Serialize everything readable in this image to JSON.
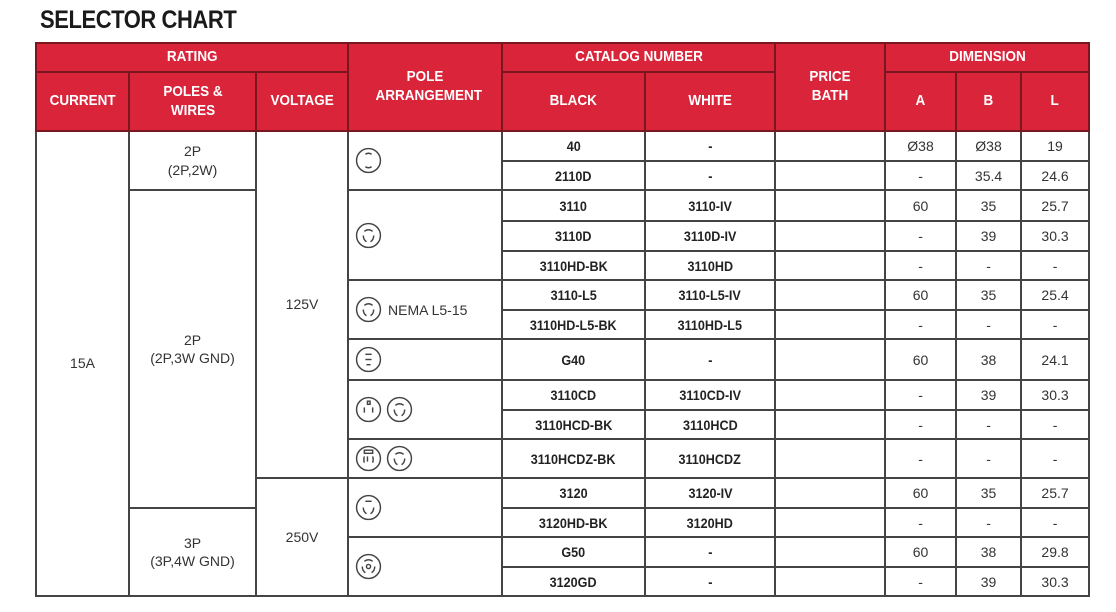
{
  "title": "SELECTOR CHART",
  "header": {
    "rating": "RATING",
    "current": "CURRENT",
    "poles_wires": "POLES & WIRES",
    "voltage": "VOLTAGE",
    "pole_arrangement": "POLE ARRANGEMENT",
    "catalog_number": "CATALOG NUMBER",
    "black": "BLACK",
    "white": "WHITE",
    "price_bath": "PRICE BATH",
    "dimension": "DIMENSION",
    "a": "A",
    "b": "B",
    "l": "L"
  },
  "colors": {
    "header_bg": "#d9243a",
    "header_text": "#ffffff"
  },
  "current": "15A",
  "poles_groups": [
    {
      "label": "2P",
      "sub": "(2P,2W)",
      "rows": 2
    },
    {
      "label": "2P",
      "sub": "(2P,3W GND)",
      "rows": 10
    },
    {
      "label": "3P",
      "sub": "(3P,4W GND)",
      "rows": 3
    }
  ],
  "voltage_groups": [
    {
      "label": "125V",
      "rows": 11
    },
    {
      "label": "250V",
      "rows": 4
    }
  ],
  "pole_groups": [
    {
      "icons": [
        "2-pole-receptacle-icon"
      ],
      "label": "",
      "rows": 2
    },
    {
      "icons": [
        "twist-lock-3-pole-icon"
      ],
      "label": "",
      "rows": 3
    },
    {
      "icons": [
        "twist-lock-3-pole-icon"
      ],
      "label": "NEMA L5-15",
      "rows": 2
    },
    {
      "icons": [
        "3-blade-receptacle-icon"
      ],
      "label": "",
      "rows": 1
    },
    {
      "icons": [
        "grounded-receptacle-icon",
        "twist-lock-3-pole-icon"
      ],
      "label": "",
      "rows": 2
    },
    {
      "icons": [
        "grounded-receptacle-z-icon",
        "twist-lock-3-pole-icon"
      ],
      "label": "",
      "rows": 1
    },
    {
      "icons": [
        "twist-lock-250v-icon"
      ],
      "label": "",
      "rows": 2
    },
    {
      "icons": [
        "twist-lock-4-wire-icon"
      ],
      "label": "",
      "rows": 2
    }
  ],
  "rows": [
    {
      "black": "40",
      "white": "-",
      "price": "",
      "a": "Ø38",
      "b": "Ø38",
      "l": "19"
    },
    {
      "black": "2110D",
      "white": "-",
      "price": "",
      "a": "-",
      "b": "35.4",
      "l": "24.6"
    },
    {
      "black": "3110",
      "white": "3110-IV",
      "price": "",
      "a": "60",
      "b": "35",
      "l": "25.7"
    },
    {
      "black": "3110D",
      "white": "3110D-IV",
      "price": "",
      "a": "-",
      "b": "39",
      "l": "30.3"
    },
    {
      "black": "3110HD-BK",
      "white": "3110HD",
      "price": "",
      "a": "-",
      "b": "-",
      "l": "-"
    },
    {
      "black": "3110-L5",
      "white": "3110-L5-IV",
      "price": "",
      "a": "60",
      "b": "35",
      "l": "25.4"
    },
    {
      "black": "3110HD-L5-BK",
      "white": "3110HD-L5",
      "price": "",
      "a": "-",
      "b": "-",
      "l": "-"
    },
    {
      "black": "G40",
      "white": "-",
      "price": "",
      "a": "60",
      "b": "38",
      "l": "24.1"
    },
    {
      "black": "3110CD",
      "white": "3110CD-IV",
      "price": "",
      "a": "-",
      "b": "39",
      "l": "30.3"
    },
    {
      "black": "3110HCD-BK",
      "white": "3110HCD",
      "price": "",
      "a": "-",
      "b": "-",
      "l": "-"
    },
    {
      "black": "3110HCDZ-BK",
      "white": "3110HCDZ",
      "price": "",
      "a": "-",
      "b": "-",
      "l": "-"
    },
    {
      "black": "3120",
      "white": "3120-IV",
      "price": "",
      "a": "60",
      "b": "35",
      "l": "25.7"
    },
    {
      "black": "3120HD-BK",
      "white": "3120HD",
      "price": "",
      "a": "-",
      "b": "-",
      "l": "-"
    },
    {
      "black": "G50",
      "white": "-",
      "price": "",
      "a": "60",
      "b": "38",
      "l": "29.8"
    },
    {
      "black": "3120GD",
      "white": "-",
      "price": "",
      "a": "-",
      "b": "39",
      "l": "30.3"
    }
  ]
}
